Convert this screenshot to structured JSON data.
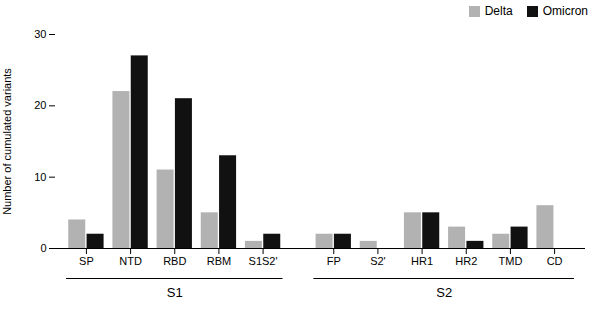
{
  "chart_data": {
    "type": "bar",
    "categories": [
      "SP",
      "NTD",
      "RBD",
      "RBM",
      "S1S2'",
      "FP",
      "S2'",
      "HR1",
      "HR2",
      "TMD",
      "CD"
    ],
    "series": [
      {
        "name": "Delta",
        "color": "#b2b2b2",
        "values": [
          4,
          22,
          11,
          5,
          1,
          2,
          1,
          5,
          3,
          2,
          6
        ]
      },
      {
        "name": "Omicron",
        "color": "#111111",
        "values": [
          2,
          27,
          21,
          13,
          2,
          2,
          0,
          5,
          1,
          3,
          0
        ]
      }
    ],
    "ylabel": "Number of cumulated variants",
    "ylim": [
      0,
      30
    ],
    "yticks": [
      0,
      10,
      20,
      30
    ],
    "legend": "upper right",
    "annotations": [
      {
        "text": "S1",
        "categories": [
          "SP",
          "NTD",
          "RBD",
          "RBM",
          "S1S2'"
        ]
      },
      {
        "text": "S2",
        "categories": [
          "FP",
          "S2'",
          "HR1",
          "HR2",
          "TMD",
          "CD"
        ]
      }
    ]
  }
}
